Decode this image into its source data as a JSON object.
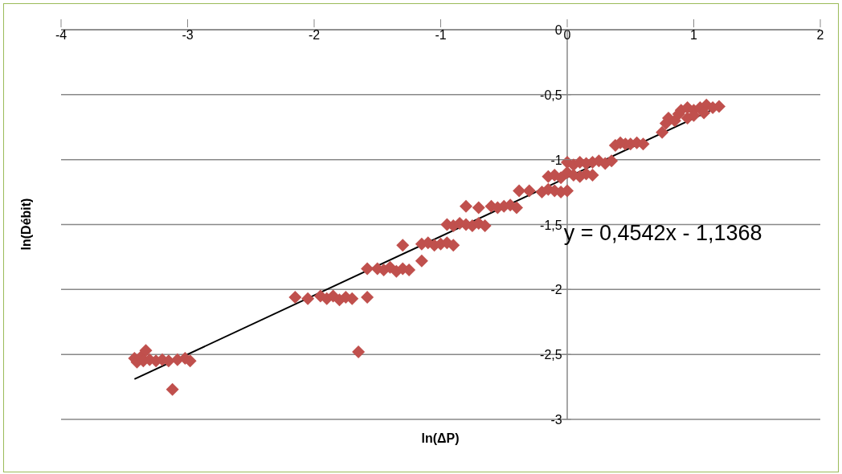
{
  "chart_data": {
    "type": "scatter",
    "xlabel": "ln(ΔP)",
    "ylabel": "ln(Débit)",
    "xlim": [
      -4,
      2
    ],
    "xticks": [
      -4,
      -3,
      -2,
      -1,
      0,
      1,
      2
    ],
    "ylim": [
      -3,
      0
    ],
    "yticks": [
      {
        "value": -3,
        "label": "-3"
      },
      {
        "value": -2.5,
        "label": "-2,5"
      },
      {
        "value": -2,
        "label": "-2"
      },
      {
        "value": -1.5,
        "label": "-1,5"
      },
      {
        "value": -1,
        "label": "-1"
      },
      {
        "value": -0.5,
        "label": "-0,5"
      },
      {
        "value": 0,
        "label": "0"
      }
    ],
    "grid": "y",
    "annotations": [
      "y = 0,4542x - 1,1368"
    ],
    "series": [
      {
        "color": "#c0504d",
        "marker": "diamond",
        "x": [
          -3.42,
          -3.4,
          -3.37,
          -3.35,
          -3.33,
          -3.3,
          -3.25,
          -3.2,
          -3.15,
          -3.12,
          -3.08,
          -3.02,
          -2.98,
          -1.65,
          -2.15,
          -2.05,
          -1.95,
          -1.9,
          -1.85,
          -1.8,
          -1.75,
          -1.7,
          -1.58,
          -1.58,
          -1.5,
          -1.45,
          -1.4,
          -1.35,
          -1.3,
          -1.25,
          -1.3,
          -1.15,
          -1.15,
          -1.1,
          -1.05,
          -1,
          -0.95,
          -0.9,
          -0.95,
          -0.9,
          -0.85,
          -0.8,
          -0.75,
          -0.7,
          -0.65,
          -0.8,
          -0.7,
          -0.6,
          -0.55,
          -0.5,
          -0.45,
          -0.4,
          -0.38,
          -0.3,
          -0.2,
          -0.15,
          -0.1,
          -0.05,
          0,
          -0.15,
          -0.1,
          -0.05,
          0,
          0.05,
          0.1,
          0.15,
          0.2,
          0,
          0.05,
          0.1,
          0.15,
          0.2,
          0.25,
          0.3,
          0.35,
          0.38,
          0.42,
          0.46,
          0.5,
          0.55,
          0.6,
          0.75,
          0.78,
          0.8,
          0.85,
          0.88,
          0.9,
          0.95,
          1,
          1,
          1.05,
          1.1,
          1.15,
          1.2,
          0.95,
          1.08
        ],
        "values": [
          -2.53,
          -2.56,
          -2.52,
          -2.55,
          -2.47,
          -2.54,
          -2.55,
          -2.54,
          -2.55,
          -2.77,
          -2.54,
          -2.53,
          -2.55,
          -2.48,
          -2.06,
          -2.07,
          -2.05,
          -2.07,
          -2.05,
          -2.08,
          -2.06,
          -2.07,
          -2.06,
          -1.84,
          -1.84,
          -1.85,
          -1.83,
          -1.86,
          -1.84,
          -1.85,
          -1.66,
          -1.78,
          -1.65,
          -1.64,
          -1.66,
          -1.65,
          -1.64,
          -1.66,
          -1.5,
          -1.51,
          -1.49,
          -1.5,
          -1.51,
          -1.49,
          -1.51,
          -1.36,
          -1.37,
          -1.36,
          -1.37,
          -1.36,
          -1.35,
          -1.37,
          -1.24,
          -1.24,
          -1.25,
          -1.23,
          -1.24,
          -1.25,
          -1.24,
          -1.13,
          -1.12,
          -1.14,
          -1.1,
          -1.12,
          -1.13,
          -1.11,
          -1.12,
          -1.02,
          -1.04,
          -1.02,
          -1.03,
          -1.02,
          -1.01,
          -1.03,
          -1.01,
          -0.89,
          -0.87,
          -0.88,
          -0.88,
          -0.87,
          -0.88,
          -0.79,
          -0.72,
          -0.68,
          -0.7,
          -0.65,
          -0.62,
          -0.6,
          -0.62,
          -0.66,
          -0.6,
          -0.58,
          -0.6,
          -0.59,
          -0.68,
          -0.64
        ]
      },
      {
        "type": "line",
        "color": "#000000",
        "marker": "none",
        "x": [
          -3.42,
          1.2
        ],
        "values": [
          -2.69,
          -0.592
        ]
      }
    ]
  }
}
